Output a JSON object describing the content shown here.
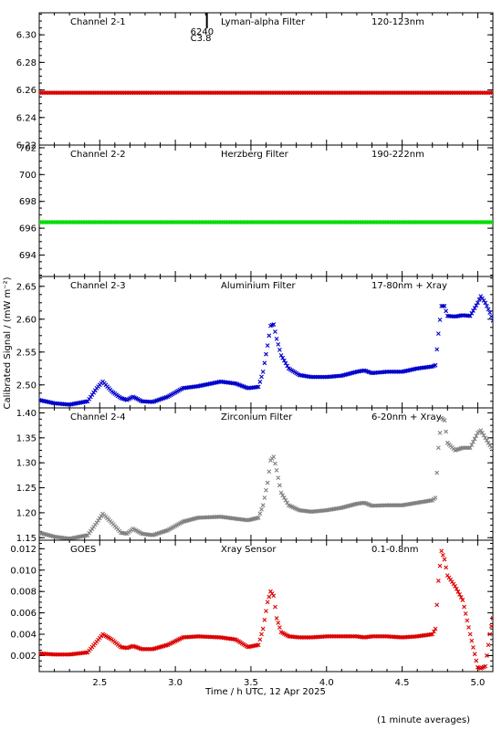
{
  "figure": {
    "ylabel": "Calibrated Signal / (mW m⁻²)",
    "xlabel": "Time / h UTC, 12 Apr 2025",
    "footnote": "(1 minute averages)",
    "xlim": [
      2.1,
      5.1
    ],
    "xticks": [
      "2.5",
      "3.0",
      "3.5",
      "4.0",
      "4.5",
      "5.0"
    ],
    "marker_annotation": {
      "x": 3.1,
      "label1": "6240",
      "label2": "C3.8"
    }
  },
  "chart_data": [
    {
      "type": "scatter",
      "panel_label": "Channel 2-1",
      "filter": "Lyman-alpha Filter",
      "range": "120-123nm",
      "color": "#dd0000",
      "ylim": [
        6.22,
        6.316
      ],
      "yticks": [
        "6.22",
        "6.24",
        "6.26",
        "6.28",
        "6.30"
      ],
      "x": [
        2.1,
        5.1
      ],
      "y": [
        6.258,
        6.258
      ]
    },
    {
      "type": "scatter",
      "panel_label": "Channel 2-2",
      "filter": "Herzberg Filter",
      "range": "190-222nm",
      "color": "#00dd00",
      "ylim": [
        692.4,
        702.2
      ],
      "yticks": [
        "694",
        "696",
        "698",
        "700",
        "702"
      ],
      "x": [
        2.1,
        5.1
      ],
      "y": [
        696.45,
        696.45
      ]
    },
    {
      "type": "scatter",
      "panel_label": "Channel 2-3",
      "filter": "Aluminium Filter",
      "range": "17-80nm + Xray",
      "color": "#0000cc",
      "ylim": [
        2.465,
        2.665
      ],
      "yticks": [
        "2.50",
        "2.55",
        "2.60",
        "2.65"
      ],
      "x": [
        2.1,
        2.2,
        2.3,
        2.42,
        2.48,
        2.52,
        2.58,
        2.64,
        2.68,
        2.72,
        2.78,
        2.85,
        2.95,
        3.05,
        3.15,
        3.3,
        3.4,
        3.48,
        3.55,
        3.58,
        3.61,
        3.63,
        3.65,
        3.67,
        3.7,
        3.75,
        3.82,
        3.9,
        4.0,
        4.1,
        4.2,
        4.25,
        4.3,
        4.4,
        4.5,
        4.6,
        4.7,
        4.72,
        4.74,
        4.76,
        4.78,
        4.8,
        4.85,
        4.9,
        4.95,
        5.0,
        5.02,
        5.05,
        5.08,
        5.1
      ],
      "y": [
        2.477,
        2.472,
        2.47,
        2.475,
        2.495,
        2.505,
        2.49,
        2.48,
        2.477,
        2.482,
        2.475,
        2.474,
        2.482,
        2.495,
        2.498,
        2.505,
        2.502,
        2.495,
        2.497,
        2.52,
        2.56,
        2.59,
        2.592,
        2.57,
        2.545,
        2.525,
        2.515,
        2.512,
        2.512,
        2.514,
        2.52,
        2.522,
        2.518,
        2.52,
        2.52,
        2.525,
        2.528,
        2.53,
        2.578,
        2.62,
        2.62,
        2.605,
        2.604,
        2.606,
        2.605,
        2.625,
        2.635,
        2.625,
        2.61,
        2.598
      ]
    },
    {
      "type": "scatter",
      "panel_label": "Channel 2-4",
      "filter": "Zirconium Filter",
      "range": "6-20nm + Xray",
      "color": "#808080",
      "ylim": [
        1.145,
        1.41
      ],
      "yticks": [
        "1.15",
        "1.20",
        "1.25",
        "1.30",
        "1.35",
        "1.40"
      ],
      "x": [
        2.1,
        2.2,
        2.3,
        2.42,
        2.48,
        2.52,
        2.58,
        2.64,
        2.68,
        2.72,
        2.78,
        2.85,
        2.95,
        3.05,
        3.15,
        3.3,
        3.4,
        3.48,
        3.55,
        3.58,
        3.61,
        3.63,
        3.65,
        3.67,
        3.7,
        3.75,
        3.82,
        3.9,
        4.0,
        4.1,
        4.2,
        4.25,
        4.3,
        4.4,
        4.5,
        4.6,
        4.7,
        4.72,
        4.74,
        4.76,
        4.78,
        4.8,
        4.85,
        4.9,
        4.95,
        5.0,
        5.02,
        5.05,
        5.08,
        5.1
      ],
      "y": [
        1.16,
        1.152,
        1.148,
        1.155,
        1.18,
        1.198,
        1.18,
        1.16,
        1.158,
        1.168,
        1.158,
        1.155,
        1.165,
        1.182,
        1.19,
        1.192,
        1.188,
        1.185,
        1.19,
        1.215,
        1.26,
        1.305,
        1.312,
        1.285,
        1.24,
        1.215,
        1.205,
        1.202,
        1.205,
        1.21,
        1.218,
        1.22,
        1.214,
        1.215,
        1.215,
        1.22,
        1.225,
        1.23,
        1.33,
        1.39,
        1.385,
        1.34,
        1.325,
        1.33,
        1.33,
        1.36,
        1.365,
        1.35,
        1.335,
        1.328
      ]
    },
    {
      "type": "scatter",
      "panel_label": "GOES",
      "filter": "Xray Sensor",
      "range": "0.1-0.8nm",
      "color": "#dd0000",
      "ylim": [
        0.0005,
        0.0128
      ],
      "yticks": [
        "0.002",
        "0.004",
        "0.006",
        "0.008",
        "0.010",
        "0.012"
      ],
      "x": [
        2.1,
        2.2,
        2.3,
        2.42,
        2.48,
        2.52,
        2.58,
        2.64,
        2.68,
        2.72,
        2.78,
        2.85,
        2.95,
        3.05,
        3.15,
        3.3,
        3.4,
        3.48,
        3.55,
        3.58,
        3.61,
        3.63,
        3.65,
        3.67,
        3.7,
        3.75,
        3.82,
        3.9,
        4.0,
        4.1,
        4.2,
        4.25,
        4.3,
        4.4,
        4.5,
        4.6,
        4.7,
        4.72,
        4.74,
        4.76,
        4.78,
        4.8,
        4.85,
        4.9,
        4.95,
        5.0,
        5.02,
        5.05,
        5.08,
        5.1
      ],
      "y": [
        0.0022,
        0.0021,
        0.0021,
        0.0023,
        0.0033,
        0.004,
        0.0035,
        0.0028,
        0.0027,
        0.0029,
        0.0026,
        0.0026,
        0.003,
        0.0037,
        0.0038,
        0.0037,
        0.0035,
        0.0028,
        0.003,
        0.0045,
        0.007,
        0.008,
        0.0076,
        0.0055,
        0.0042,
        0.0038,
        0.0037,
        0.0037,
        0.0038,
        0.0038,
        0.0038,
        0.0037,
        0.0038,
        0.0038,
        0.0037,
        0.0038,
        0.004,
        0.0045,
        0.009,
        0.0118,
        0.011,
        0.0095,
        0.0085,
        0.0072,
        0.004,
        0.0009,
        0.0008,
        0.001,
        0.004,
        0.0055
      ]
    }
  ]
}
